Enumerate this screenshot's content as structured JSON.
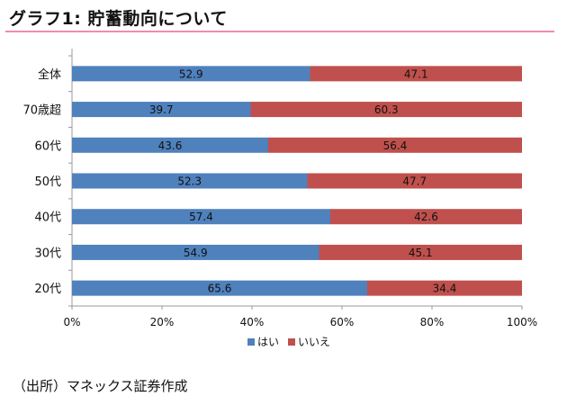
{
  "header": {
    "title": "グラフ1: 貯蓄動向について"
  },
  "footer": {
    "source": "（出所）マネックス証券作成"
  },
  "colors": {
    "yes": "#4f81bd",
    "no": "#c0504d",
    "rule": "#f08cb0",
    "axis": "#999999"
  },
  "chart_data": {
    "type": "bar",
    "orientation": "horizontal",
    "stacked": "percent",
    "categories": [
      "全体",
      "70歳超",
      "60代",
      "50代",
      "40代",
      "30代",
      "20代"
    ],
    "series": [
      {
        "name": "はい",
        "values": [
          52.9,
          39.7,
          43.6,
          52.3,
          57.4,
          54.9,
          65.6
        ]
      },
      {
        "name": "いいえ",
        "values": [
          47.1,
          60.3,
          56.4,
          47.7,
          42.6,
          45.1,
          34.4
        ]
      }
    ],
    "xlim": [
      0,
      100
    ],
    "xticks": [
      "0%",
      "20%",
      "40%",
      "60%",
      "80%",
      "100%"
    ],
    "legend_position": "bottom",
    "grid": false
  }
}
